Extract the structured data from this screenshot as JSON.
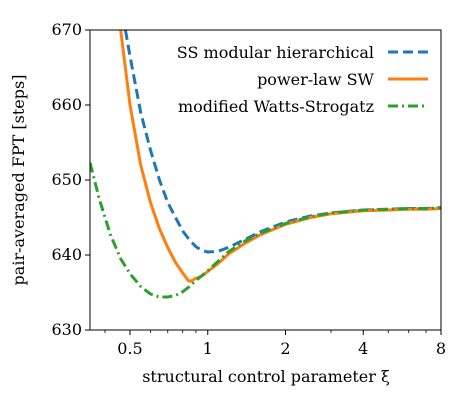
{
  "chart_data": {
    "type": "line",
    "title": "",
    "xlabel": "structural control parameter ξ",
    "ylabel": "pair-averaged FPT [steps]",
    "xscale": "log",
    "xlim": [
      0.35,
      8
    ],
    "ylim": [
      630,
      670
    ],
    "xticks": [
      {
        "value": 0.5,
        "label": "0.5"
      },
      {
        "value": 1,
        "label": "1"
      },
      {
        "value": 2,
        "label": "2"
      },
      {
        "value": 4,
        "label": "4"
      },
      {
        "value": 8,
        "label": "8"
      }
    ],
    "yticks": [
      {
        "value": 630,
        "label": "630"
      },
      {
        "value": 640,
        "label": "640"
      },
      {
        "value": 650,
        "label": "650"
      },
      {
        "value": 660,
        "label": "660"
      },
      {
        "value": 670,
        "label": "670"
      }
    ],
    "grid": false,
    "legend_position": "top-right",
    "series": [
      {
        "name": "SS modular hierarchical",
        "color": "#1f77b4",
        "style": "dashed",
        "x": [
          0.48,
          0.5,
          0.55,
          0.6,
          0.65,
          0.7,
          0.75,
          0.8,
          0.85,
          0.9,
          0.95,
          1.0,
          1.1,
          1.2,
          1.4,
          1.6,
          2.0,
          2.5,
          3.0,
          4.0,
          5.0,
          6.0,
          7.0,
          8.0
        ],
        "y": [
          670,
          666.5,
          659,
          654,
          650,
          647,
          645,
          643.2,
          642,
          641.1,
          640.6,
          640.4,
          640.5,
          641,
          642.1,
          643.1,
          644.4,
          645.2,
          645.6,
          646.0,
          646.1,
          646.2,
          646.2,
          646.3
        ]
      },
      {
        "name": "power-law SW",
        "color": "#ff7f0e",
        "style": "solid",
        "x": [
          0.46,
          0.5,
          0.55,
          0.6,
          0.65,
          0.7,
          0.75,
          0.8,
          0.84,
          0.86,
          0.9,
          0.95,
          1.0,
          1.1,
          1.2,
          1.4,
          1.6,
          2.0,
          2.5,
          3.0,
          4.0,
          5.0,
          6.0,
          7.0,
          8.0
        ],
        "y": [
          670,
          660,
          652,
          647,
          643.5,
          641,
          639,
          637.6,
          636.6,
          636.5,
          636.9,
          637.2,
          637.8,
          638.9,
          640.1,
          641.6,
          642.7,
          644.1,
          645.0,
          645.5,
          645.9,
          646.0,
          646.1,
          646.1,
          646.2
        ]
      },
      {
        "name": "modified Watts-Strogatz",
        "color": "#2ca02c",
        "style": "dashdot",
        "x": [
          0.35,
          0.38,
          0.42,
          0.46,
          0.5,
          0.55,
          0.6,
          0.65,
          0.7,
          0.75,
          0.8,
          0.85,
          0.9,
          1.0,
          1.1,
          1.2,
          1.4,
          1.6,
          2.0,
          2.5,
          3.0,
          4.0,
          5.0,
          6.0,
          7.0,
          8.0
        ],
        "y": [
          652.3,
          647.5,
          642.7,
          639.5,
          637.5,
          635.8,
          634.8,
          634.4,
          634.4,
          634.6,
          635.1,
          635.8,
          636.6,
          637.9,
          639.2,
          640.4,
          641.9,
          642.9,
          644.2,
          645.1,
          645.6,
          646.0,
          646.1,
          646.2,
          646.2,
          646.3
        ]
      }
    ]
  }
}
